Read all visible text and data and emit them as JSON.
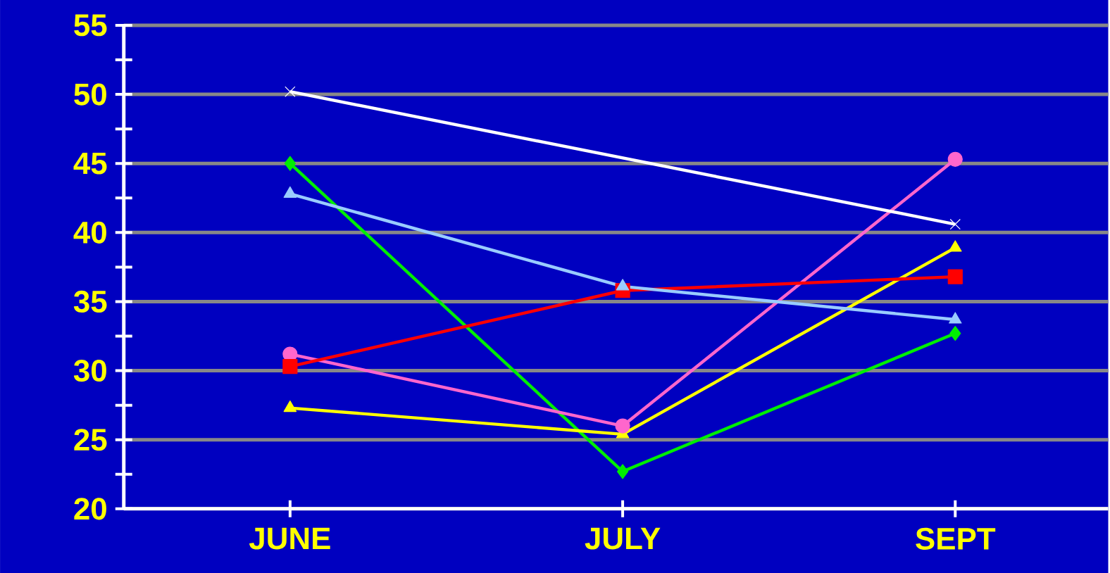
{
  "chart_data": {
    "type": "line",
    "categories": [
      "JUNE",
      "JULY",
      "SEPT"
    ],
    "ylim": [
      20,
      55
    ],
    "yticks": [
      20,
      25,
      30,
      35,
      40,
      45,
      50,
      55
    ],
    "grid": "y",
    "series": [
      {
        "color": "#ffffff",
        "marker": "cross",
        "values": [
          50.2,
          null,
          40.6
        ]
      },
      {
        "color": "#99ccff",
        "marker": "triangle",
        "values": [
          42.8,
          36.1,
          33.7
        ]
      },
      {
        "color": "#ff0000",
        "marker": "square",
        "values": [
          30.3,
          35.8,
          36.8
        ]
      },
      {
        "color": "#ff66cc",
        "marker": "circle",
        "values": [
          31.2,
          26.0,
          45.3
        ]
      },
      {
        "color": "#ffff00",
        "marker": "triangle",
        "values": [
          27.3,
          25.4,
          38.9
        ]
      },
      {
        "color": "#00ee00",
        "marker": "diamond",
        "values": [
          45.0,
          22.7,
          32.7
        ]
      }
    ]
  }
}
